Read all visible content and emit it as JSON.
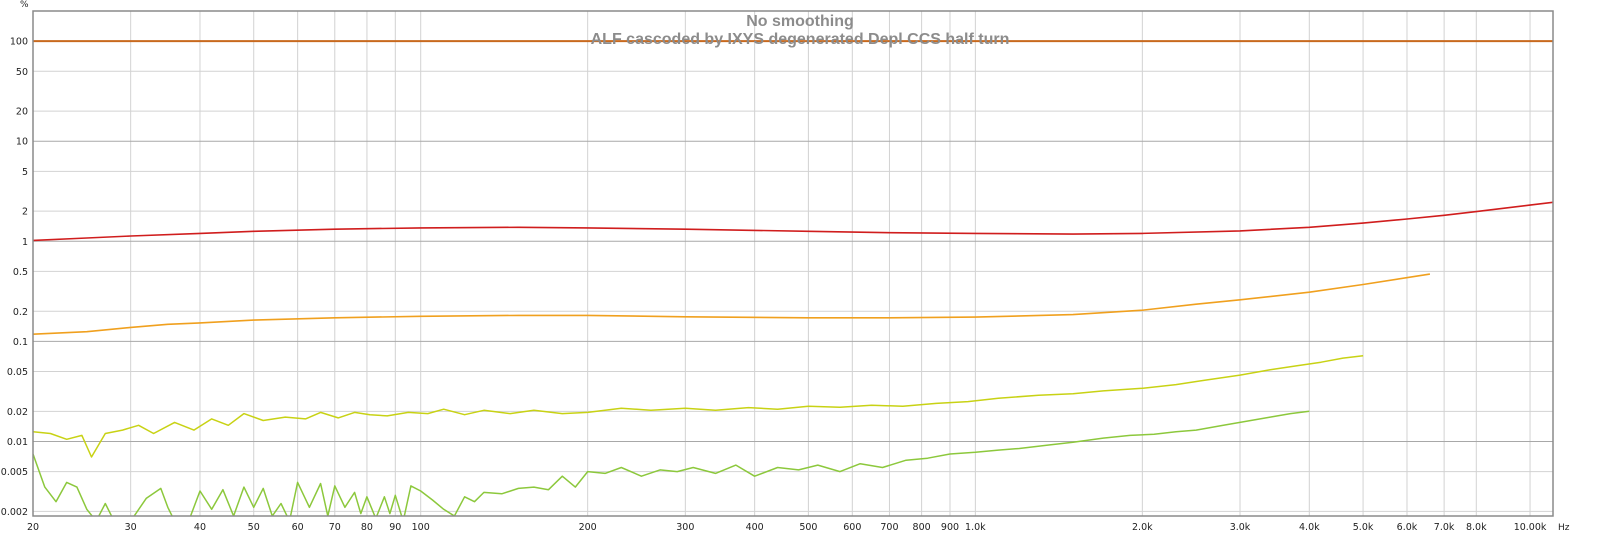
{
  "chart_data": {
    "type": "line",
    "title": "No smoothing",
    "subtitle": "ALF cascoded by IXYS degenerated Depl CCS half turn",
    "xlabel": "Hz",
    "ylabel": "%",
    "xscale": "log",
    "yscale": "log",
    "xlim": [
      20,
      11000
    ],
    "ylim": [
      0.0018,
      200
    ],
    "grid": true,
    "x_ticks": [
      {
        "v": 20,
        "label": "20"
      },
      {
        "v": 30,
        "label": "30"
      },
      {
        "v": 40,
        "label": "40"
      },
      {
        "v": 50,
        "label": "50"
      },
      {
        "v": 60,
        "label": "60"
      },
      {
        "v": 70,
        "label": "70"
      },
      {
        "v": 80,
        "label": "80"
      },
      {
        "v": 90,
        "label": "90"
      },
      {
        "v": 100,
        "label": "100"
      },
      {
        "v": 200,
        "label": "200"
      },
      {
        "v": 300,
        "label": "300"
      },
      {
        "v": 400,
        "label": "400"
      },
      {
        "v": 500,
        "label": "500"
      },
      {
        "v": 600,
        "label": "600"
      },
      {
        "v": 700,
        "label": "700"
      },
      {
        "v": 800,
        "label": "800"
      },
      {
        "v": 900,
        "label": "900"
      },
      {
        "v": 1000,
        "label": "1.0k"
      },
      {
        "v": 2000,
        "label": "2.0k"
      },
      {
        "v": 3000,
        "label": "3.0k"
      },
      {
        "v": 4000,
        "label": "4.0k"
      },
      {
        "v": 5000,
        "label": "5.0k"
      },
      {
        "v": 6000,
        "label": "6.0k"
      },
      {
        "v": 7000,
        "label": "7.0k"
      },
      {
        "v": 8000,
        "label": "8.0k"
      },
      {
        "v": 10000,
        "label": "10.00k"
      }
    ],
    "y_ticks": [
      {
        "v": 100,
        "label": "100"
      },
      {
        "v": 50,
        "label": "50"
      },
      {
        "v": 20,
        "label": "20"
      },
      {
        "v": 10,
        "label": "10"
      },
      {
        "v": 5,
        "label": "5"
      },
      {
        "v": 2,
        "label": "2"
      },
      {
        "v": 1,
        "label": "1"
      },
      {
        "v": 0.5,
        "label": "0.5"
      },
      {
        "v": 0.2,
        "label": "0.2"
      },
      {
        "v": 0.1,
        "label": "0.1"
      },
      {
        "v": 0.05,
        "label": "0.05"
      },
      {
        "v": 0.02,
        "label": "0.02"
      },
      {
        "v": 0.01,
        "label": "0.01"
      },
      {
        "v": 0.005,
        "label": "0.005"
      },
      {
        "v": 0.002,
        "label": "0.002"
      }
    ],
    "series": [
      {
        "color": "#c8691e",
        "width": 2,
        "x": [
          20,
          11000
        ],
        "y": [
          100,
          100
        ]
      },
      {
        "color": "#d01d1d",
        "width": 1.6,
        "x": [
          20,
          25,
          30,
          40,
          50,
          70,
          100,
          150,
          200,
          300,
          500,
          700,
          1000,
          1500,
          2000,
          3000,
          4000,
          5000,
          6000,
          7000,
          8000,
          10000,
          11000
        ],
        "y": [
          1.02,
          1.08,
          1.13,
          1.2,
          1.26,
          1.32,
          1.36,
          1.38,
          1.36,
          1.32,
          1.26,
          1.22,
          1.2,
          1.18,
          1.2,
          1.27,
          1.38,
          1.52,
          1.67,
          1.82,
          1.98,
          2.3,
          2.45
        ]
      },
      {
        "color": "#f0a01e",
        "width": 1.6,
        "x": [
          20,
          25,
          30,
          35,
          40,
          50,
          70,
          100,
          150,
          200,
          300,
          500,
          700,
          1000,
          1500,
          2000,
          2500,
          3000,
          4000,
          5000,
          6600
        ],
        "y": [
          0.118,
          0.125,
          0.138,
          0.148,
          0.153,
          0.163,
          0.172,
          0.178,
          0.182,
          0.182,
          0.176,
          0.172,
          0.172,
          0.175,
          0.185,
          0.205,
          0.235,
          0.26,
          0.31,
          0.37,
          0.47
        ]
      },
      {
        "color": "#c8d214",
        "width": 1.5,
        "x": [
          20,
          21.5,
          23,
          24.5,
          25.5,
          27,
          29,
          31,
          33,
          36,
          39,
          42,
          45,
          48,
          52,
          57,
          62,
          66,
          71,
          76,
          81,
          87,
          95,
          103,
          110,
          120,
          130,
          145,
          160,
          180,
          200,
          230,
          260,
          300,
          340,
          390,
          440,
          500,
          570,
          650,
          740,
          850,
          970,
          1100,
          1300,
          1500,
          1700,
          2000,
          2300,
          2600,
          3000,
          3400,
          3800,
          4200,
          4600,
          5000
        ],
        "y": [
          0.0125,
          0.012,
          0.0105,
          0.0115,
          0.007,
          0.012,
          0.013,
          0.0145,
          0.012,
          0.0155,
          0.013,
          0.0168,
          0.0145,
          0.019,
          0.0162,
          0.0175,
          0.0168,
          0.0195,
          0.0172,
          0.0195,
          0.0185,
          0.018,
          0.0195,
          0.019,
          0.021,
          0.0185,
          0.0205,
          0.019,
          0.0205,
          0.019,
          0.0195,
          0.0215,
          0.0205,
          0.0215,
          0.0205,
          0.0218,
          0.021,
          0.0225,
          0.022,
          0.023,
          0.0225,
          0.024,
          0.025,
          0.027,
          0.029,
          0.03,
          0.032,
          0.034,
          0.037,
          0.041,
          0.046,
          0.052,
          0.057,
          0.062,
          0.068,
          0.072
        ]
      },
      {
        "color": "#8cc83c",
        "width": 1.5,
        "x": [
          20,
          21,
          22,
          23,
          24,
          25,
          26,
          27,
          28,
          29,
          30,
          32,
          34,
          35,
          36,
          38,
          40,
          42,
          44,
          46,
          48,
          50,
          52,
          54,
          56,
          58,
          60,
          63,
          66,
          68,
          70,
          73,
          76,
          78,
          80,
          83,
          86,
          88,
          90,
          93,
          96,
          100,
          105,
          110,
          115,
          120,
          125,
          130,
          140,
          150,
          160,
          170,
          180,
          190,
          200,
          215,
          230,
          250,
          270,
          290,
          310,
          340,
          370,
          400,
          440,
          480,
          520,
          570,
          620,
          680,
          750,
          820,
          900,
          1000,
          1100,
          1200,
          1350,
          1500,
          1700,
          1900,
          2100,
          2300,
          2500,
          2800,
          3100,
          3400,
          3700,
          4000
        ],
        "y": [
          0.0075,
          0.0035,
          0.0025,
          0.0039,
          0.0035,
          0.0021,
          0.0016,
          0.0024,
          0.0016,
          0.0015,
          0.0016,
          0.0027,
          0.0034,
          0.0022,
          0.0016,
          0.0015,
          0.0032,
          0.0021,
          0.0033,
          0.0018,
          0.0035,
          0.0022,
          0.0034,
          0.0018,
          0.0024,
          0.0016,
          0.0039,
          0.0022,
          0.0038,
          0.0018,
          0.0036,
          0.0022,
          0.0031,
          0.0019,
          0.0028,
          0.0017,
          0.0028,
          0.0019,
          0.0029,
          0.0016,
          0.0036,
          0.0032,
          0.0026,
          0.0021,
          0.0018,
          0.0028,
          0.0025,
          0.0031,
          0.003,
          0.0034,
          0.0035,
          0.0033,
          0.0045,
          0.0035,
          0.005,
          0.0048,
          0.0055,
          0.0045,
          0.0052,
          0.005,
          0.0055,
          0.0048,
          0.0058,
          0.0045,
          0.0055,
          0.0052,
          0.0058,
          0.005,
          0.006,
          0.0055,
          0.0065,
          0.0068,
          0.0075,
          0.0078,
          0.0082,
          0.0085,
          0.0092,
          0.0098,
          0.0108,
          0.0115,
          0.0118,
          0.0125,
          0.013,
          0.0145,
          0.016,
          0.0175,
          0.019,
          0.02
        ]
      }
    ]
  }
}
